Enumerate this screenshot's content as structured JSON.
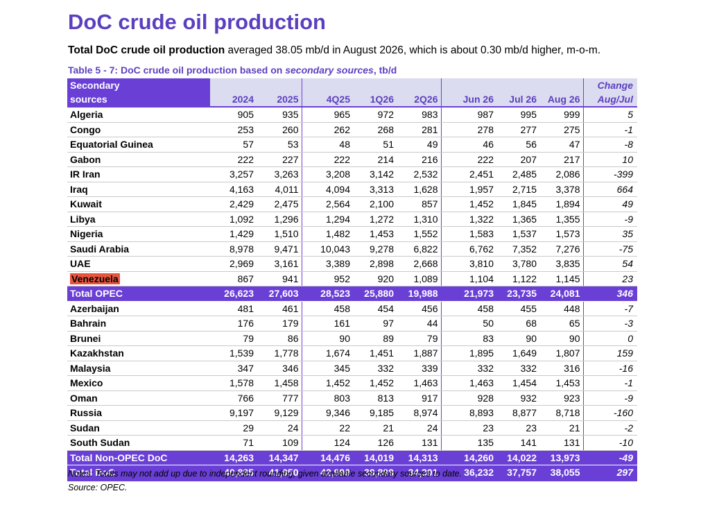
{
  "title": "DoC crude oil production",
  "summary": {
    "bold": "Total DoC crude oil production",
    "rest": " averaged 38.05 mb/d in August 2026, which is about 0.30 mb/d higher, m-o-m."
  },
  "caption": {
    "prefix": "Table 5 - 7: DoC crude oil production based on ",
    "italic": "secondary sources",
    "suffix": ", tb/d"
  },
  "header": {
    "source_line1": "Secondary",
    "source_line2": "sources",
    "columns": [
      "2024",
      "2025",
      "4Q25",
      "1Q26",
      "2Q26",
      "Jun 26",
      "Jul 26",
      "Aug 26"
    ],
    "change_line1": "Change",
    "change_line2": "Aug/Jul"
  },
  "opec_rows": [
    {
      "name": "Algeria",
      "values": [
        "905",
        "935",
        "965",
        "972",
        "983",
        "987",
        "995",
        "999"
      ],
      "change": "5"
    },
    {
      "name": "Congo",
      "values": [
        "253",
        "260",
        "262",
        "268",
        "281",
        "278",
        "277",
        "275"
      ],
      "change": "-1"
    },
    {
      "name": "Equatorial Guinea",
      "values": [
        "57",
        "53",
        "48",
        "51",
        "49",
        "46",
        "56",
        "47"
      ],
      "change": "-8"
    },
    {
      "name": "Gabon",
      "values": [
        "222",
        "227",
        "222",
        "214",
        "216",
        "222",
        "207",
        "217"
      ],
      "change": "10"
    },
    {
      "name": "IR Iran",
      "values": [
        "3,257",
        "3,263",
        "3,208",
        "3,142",
        "2,532",
        "2,451",
        "2,485",
        "2,086"
      ],
      "change": "-399"
    },
    {
      "name": "Iraq",
      "values": [
        "4,163",
        "4,011",
        "4,094",
        "3,313",
        "1,628",
        "1,957",
        "2,715",
        "3,378"
      ],
      "change": "664"
    },
    {
      "name": "Kuwait",
      "values": [
        "2,429",
        "2,475",
        "2,564",
        "2,100",
        "857",
        "1,452",
        "1,845",
        "1,894"
      ],
      "change": "49"
    },
    {
      "name": "Libya",
      "values": [
        "1,092",
        "1,296",
        "1,294",
        "1,272",
        "1,310",
        "1,322",
        "1,365",
        "1,355"
      ],
      "change": "-9"
    },
    {
      "name": "Nigeria",
      "values": [
        "1,429",
        "1,510",
        "1,482",
        "1,453",
        "1,552",
        "1,583",
        "1,537",
        "1,573"
      ],
      "change": "35"
    },
    {
      "name": "Saudi Arabia",
      "values": [
        "8,978",
        "9,471",
        "10,043",
        "9,278",
        "6,822",
        "6,762",
        "7,352",
        "7,276"
      ],
      "change": "-75"
    },
    {
      "name": "UAE",
      "values": [
        "2,969",
        "3,161",
        "3,389",
        "2,898",
        "2,668",
        "3,810",
        "3,780",
        "3,835"
      ],
      "change": "54"
    },
    {
      "name": "Venezuela",
      "values": [
        "867",
        "941",
        "952",
        "920",
        "1,089",
        "1,104",
        "1,122",
        "1,145"
      ],
      "change": "23",
      "highlight": true
    }
  ],
  "total_opec": {
    "name": "Total  OPEC",
    "values": [
      "26,623",
      "27,603",
      "28,523",
      "25,880",
      "19,988",
      "21,973",
      "23,735",
      "24,081"
    ],
    "change": "346"
  },
  "non_opec_rows": [
    {
      "name": "Azerbaijan",
      "values": [
        "481",
        "461",
        "458",
        "454",
        "456",
        "458",
        "455",
        "448"
      ],
      "change": "-7"
    },
    {
      "name": "Bahrain",
      "values": [
        "176",
        "179",
        "161",
        "97",
        "44",
        "50",
        "68",
        "65"
      ],
      "change": "-3"
    },
    {
      "name": "Brunei",
      "values": [
        "79",
        "86",
        "90",
        "89",
        "79",
        "83",
        "90",
        "90"
      ],
      "change": "0"
    },
    {
      "name": "Kazakhstan",
      "values": [
        "1,539",
        "1,778",
        "1,674",
        "1,451",
        "1,887",
        "1,895",
        "1,649",
        "1,807"
      ],
      "change": "159"
    },
    {
      "name": "Malaysia",
      "values": [
        "347",
        "346",
        "345",
        "332",
        "339",
        "332",
        "332",
        "316"
      ],
      "change": "-16"
    },
    {
      "name": "Mexico",
      "values": [
        "1,578",
        "1,458",
        "1,452",
        "1,452",
        "1,463",
        "1,463",
        "1,454",
        "1,453"
      ],
      "change": "-1"
    },
    {
      "name": "Oman",
      "values": [
        "766",
        "777",
        "803",
        "813",
        "917",
        "928",
        "932",
        "923"
      ],
      "change": "-9"
    },
    {
      "name": "Russia",
      "values": [
        "9,197",
        "9,129",
        "9,346",
        "9,185",
        "8,974",
        "8,893",
        "8,877",
        "8,718"
      ],
      "change": "-160"
    },
    {
      "name": "Sudan",
      "values": [
        "29",
        "24",
        "22",
        "21",
        "24",
        "23",
        "23",
        "21"
      ],
      "change": "-2"
    },
    {
      "name": "South Sudan",
      "values": [
        "71",
        "109",
        "124",
        "126",
        "131",
        "135",
        "141",
        "131"
      ],
      "change": "-10"
    }
  ],
  "total_non_opec": {
    "name": "Total Non-OPEC DoC",
    "values": [
      "14,263",
      "14,347",
      "14,476",
      "14,019",
      "14,313",
      "14,260",
      "14,022",
      "13,973"
    ],
    "change": "-49"
  },
  "total_doc": {
    "name": "Total DoC",
    "values": [
      "40,885",
      "41,950",
      "42,999",
      "39,899",
      "34,301",
      "36,232",
      "37,757",
      "38,055"
    ],
    "change": "297"
  },
  "notes": "Notes: Totals may not add up due to independent rounding, given available secondary sources to date.",
  "source": "Source: OPEC.",
  "colors": {
    "accent": "#6a3fd6",
    "title": "#5b3fbf",
    "header_bg": "#dcdcf0",
    "highlight": "#e8553e"
  }
}
